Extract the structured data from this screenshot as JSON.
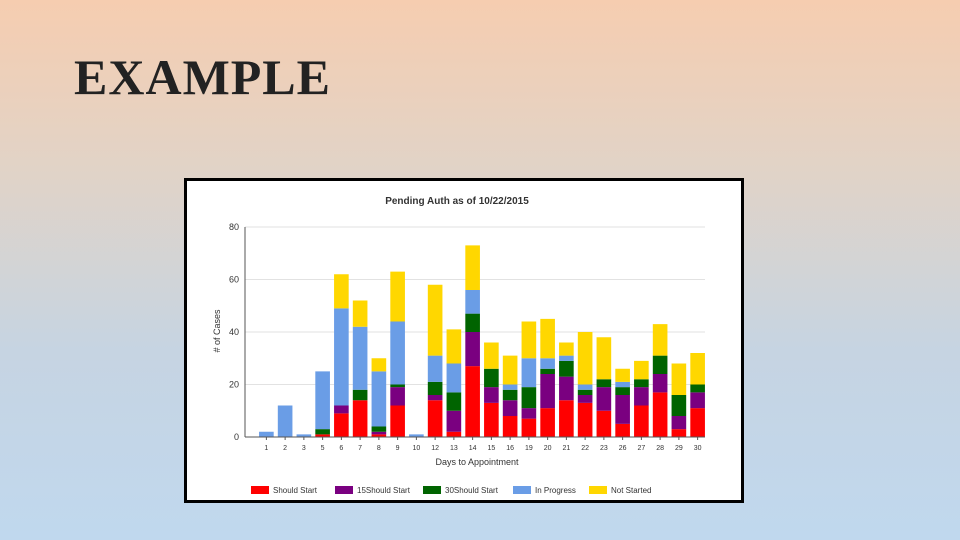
{
  "slide": {
    "title": "EXAMPLE"
  },
  "chart_data": {
    "type": "bar",
    "stacked": true,
    "title": "Pending Auth as of 10/22/2015",
    "xlabel": "Days to Appointment",
    "ylabel": "# of Cases",
    "ylim": [
      0,
      80
    ],
    "yticks": [
      0,
      20,
      40,
      60,
      80
    ],
    "grid": true,
    "legend_position": "bottom",
    "categories": [
      "1",
      "2",
      "3",
      "5",
      "6",
      "7",
      "8",
      "9",
      "10",
      "12",
      "13",
      "14",
      "15",
      "16",
      "19",
      "20",
      "21",
      "22",
      "23",
      "26",
      "27",
      "28",
      "29",
      "30"
    ],
    "series": [
      {
        "name": "Should Start",
        "color": "#ff0000",
        "values": [
          0,
          0,
          0,
          1,
          9,
          14,
          1,
          12,
          0,
          14,
          2,
          27,
          13,
          8,
          7,
          11,
          14,
          13,
          10,
          5,
          12,
          17,
          3,
          11
        ]
      },
      {
        "name": "15Should Start",
        "color": "#7a0080",
        "values": [
          0,
          0,
          0,
          0,
          3,
          0,
          1,
          7,
          0,
          2,
          8,
          13,
          6,
          6,
          4,
          13,
          9,
          3,
          9,
          11,
          7,
          7,
          5,
          6
        ]
      },
      {
        "name": "30Should Start",
        "color": "#006400",
        "values": [
          0,
          0,
          0,
          2,
          0,
          4,
          2,
          1,
          0,
          5,
          7,
          7,
          7,
          4,
          8,
          2,
          6,
          2,
          3,
          3,
          3,
          7,
          8,
          3
        ]
      },
      {
        "name": "In Progress",
        "color": "#6a9de6",
        "values": [
          2,
          12,
          1,
          22,
          37,
          24,
          21,
          24,
          1,
          10,
          11,
          9,
          0,
          2,
          11,
          4,
          2,
          2,
          0,
          2,
          0,
          0,
          0,
          0
        ]
      },
      {
        "name": "Not Started",
        "color": "#ffd700",
        "values": [
          0,
          0,
          0,
          0,
          13,
          10,
          5,
          19,
          0,
          27,
          13,
          17,
          10,
          11,
          14,
          15,
          5,
          20,
          16,
          5,
          7,
          12,
          12,
          12
        ]
      }
    ]
  }
}
